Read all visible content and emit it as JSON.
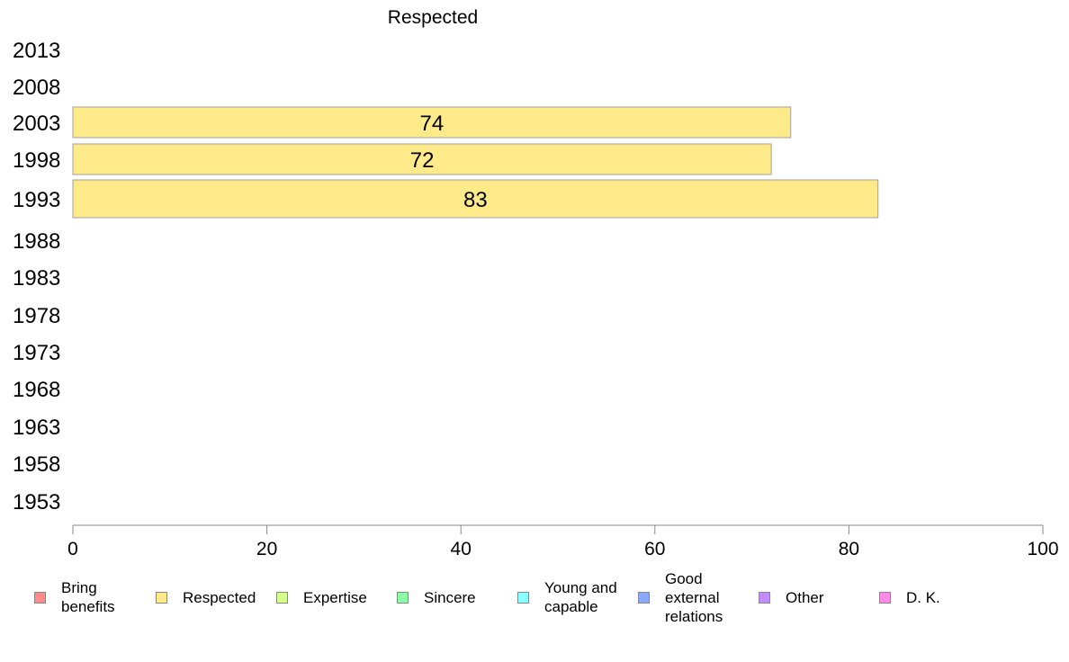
{
  "chart_data": {
    "type": "bar",
    "orientation": "horizontal",
    "title": "Respected",
    "categories": [
      "2013",
      "2008",
      "2003",
      "1998",
      "1993",
      "1988",
      "1983",
      "1978",
      "1973",
      "1968",
      "1963",
      "1958",
      "1953"
    ],
    "series": [
      {
        "name": "Respected",
        "values": [
          null,
          null,
          74,
          72,
          83,
          null,
          null,
          null,
          null,
          null,
          null,
          null,
          null
        ],
        "color": "#FFEA8A"
      }
    ],
    "xlim": [
      0,
      100
    ],
    "xticks": [
      "0",
      "20",
      "40",
      "60",
      "80",
      "100"
    ],
    "grid": false,
    "legend": {
      "position": "bottom",
      "entries": [
        {
          "label": "Bring benefits",
          "color": "#FF8A8A"
        },
        {
          "label": "Respected",
          "color": "#FFEA8A"
        },
        {
          "label": "Expertise",
          "color": "#D4FF8A"
        },
        {
          "label": "Sincere",
          "color": "#8AFFA8"
        },
        {
          "label": "Young and capable",
          "color": "#8AFFFF"
        },
        {
          "label": "Good external relations",
          "color": "#8AAAFF"
        },
        {
          "label": "Other",
          "color": "#C48AFF"
        },
        {
          "label": "D. K.",
          "color": "#FF8AEA"
        }
      ]
    }
  }
}
